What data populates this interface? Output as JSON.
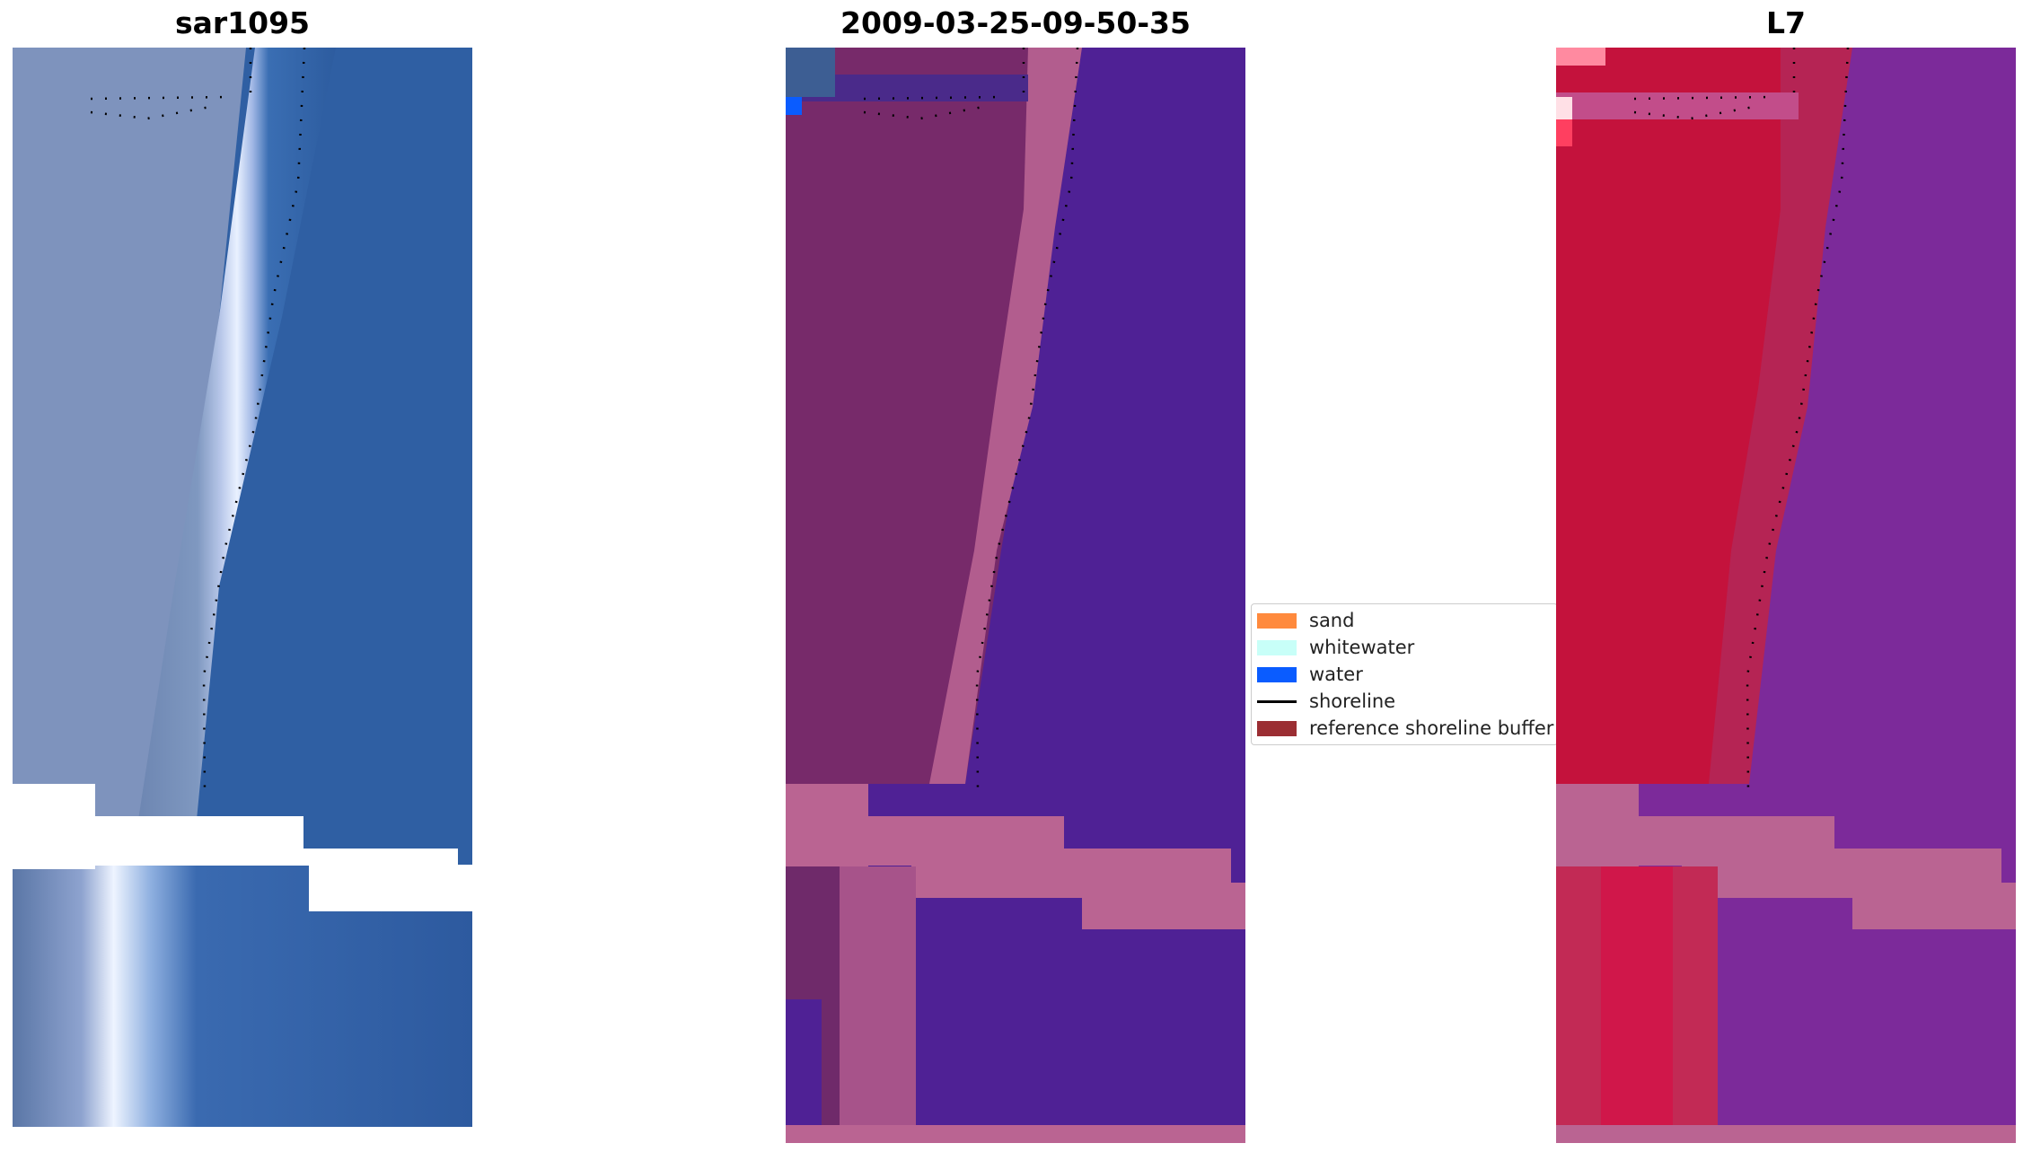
{
  "panels": [
    {
      "title": "sar1095"
    },
    {
      "title": "2009-03-25-09-50-35"
    },
    {
      "title": "L7"
    }
  ],
  "legend": {
    "items": [
      {
        "label": "sand",
        "kind": "patch",
        "color": "#ff8a3d"
      },
      {
        "label": "whitewater",
        "kind": "patch",
        "color": "#c8fff8"
      },
      {
        "label": "water",
        "kind": "patch",
        "color": "#0a5cff"
      },
      {
        "label": "shoreline",
        "kind": "line",
        "color": "#000000"
      },
      {
        "label": "reference shoreline buffer",
        "kind": "patch",
        "color": "#9b2e33"
      }
    ]
  },
  "colors": {
    "rgb_water": "#2f5fa3",
    "rgb_whitewater": "#e8f0ff",
    "classified_water": "#4f2195",
    "classified_land": "#7a2a6a",
    "buffer_pink": "#ba6492",
    "l7_red": "#c4123c",
    "l7_purple": "#7c2a9a"
  }
}
